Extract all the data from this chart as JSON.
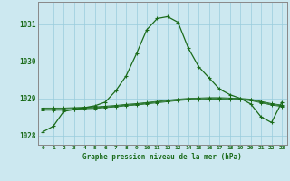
{
  "hours": [
    0,
    1,
    2,
    3,
    4,
    5,
    6,
    7,
    8,
    9,
    10,
    11,
    12,
    13,
    14,
    15,
    16,
    17,
    18,
    19,
    20,
    21,
    22,
    23
  ],
  "pressure_main": [
    1028.1,
    1028.25,
    1028.65,
    1028.7,
    1028.75,
    1028.8,
    1028.9,
    1029.2,
    1029.6,
    1030.2,
    1030.85,
    1031.15,
    1031.2,
    1031.05,
    1030.35,
    1029.85,
    1029.55,
    1029.25,
    1029.1,
    1029.0,
    1028.85,
    1028.5,
    1028.35,
    1028.9
  ],
  "pressure_line2": [
    1028.72,
    1028.72,
    1028.72,
    1028.73,
    1028.74,
    1028.75,
    1028.77,
    1028.79,
    1028.82,
    1028.84,
    1028.87,
    1028.9,
    1028.93,
    1028.96,
    1028.98,
    1028.99,
    1029.0,
    1029.0,
    1028.99,
    1028.98,
    1028.96,
    1028.9,
    1028.84,
    1028.8
  ],
  "pressure_line3": [
    1028.74,
    1028.74,
    1028.74,
    1028.75,
    1028.76,
    1028.77,
    1028.79,
    1028.81,
    1028.84,
    1028.86,
    1028.89,
    1028.92,
    1028.95,
    1028.98,
    1029.0,
    1029.01,
    1029.02,
    1029.02,
    1029.01,
    1029.0,
    1028.98,
    1028.92,
    1028.86,
    1028.82
  ],
  "pressure_line4": [
    1028.68,
    1028.68,
    1028.68,
    1028.7,
    1028.72,
    1028.73,
    1028.75,
    1028.77,
    1028.8,
    1028.82,
    1028.85,
    1028.88,
    1028.91,
    1028.94,
    1028.96,
    1028.97,
    1028.98,
    1028.98,
    1028.97,
    1028.96,
    1028.94,
    1028.88,
    1028.82,
    1028.78
  ],
  "ylim": [
    1027.75,
    1031.6
  ],
  "yticks": [
    1028,
    1029,
    1030,
    1031
  ],
  "background_color": "#cce8f0",
  "grid_color": "#99ccdd",
  "line_color": "#1a6b1a",
  "spine_color": "#888888",
  "title": "Graphe pression niveau de la mer (hPa)"
}
